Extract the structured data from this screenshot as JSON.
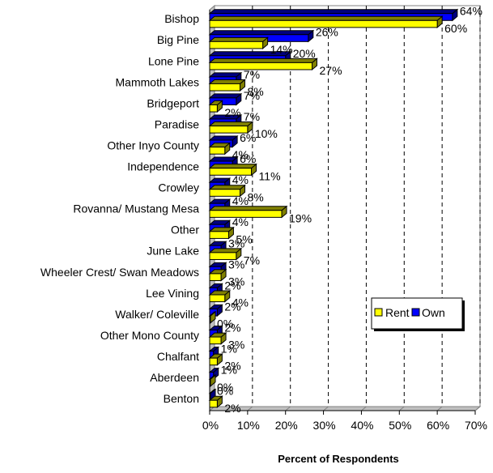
{
  "chart_data": {
    "type": "bar",
    "orientation": "horizontal",
    "categories": [
      "Bishop",
      "Big Pine",
      "Lone Pine",
      "Mammoth Lakes",
      "Bridgeport",
      "Paradise",
      "Other Inyo County",
      "Independence",
      "Crowley",
      "Rovanna/ Mustang Mesa",
      "Other",
      "June Lake",
      "Wheeler Crest/ Swan Meadows",
      "Lee Vining",
      "Walker/ Coleville",
      "Other Mono County",
      "Chalfant",
      "Aberdeen",
      "Benton"
    ],
    "series": [
      {
        "name": "Own",
        "color": "#0000ff",
        "values": [
          64,
          26,
          20,
          7,
          7,
          7,
          6,
          6,
          4,
          4,
          4,
          3,
          3,
          2,
          2,
          2,
          1,
          1,
          0
        ],
        "labels": [
          "64%",
          "26%",
          "20%",
          "7%",
          "7%",
          "7%",
          "6%",
          "6%",
          "4%",
          "4%",
          "4%",
          "3%",
          "3%",
          "2%",
          "2%",
          "2%",
          "1%",
          "1%",
          "0%"
        ]
      },
      {
        "name": "Rent",
        "color": "#ffff00",
        "values": [
          60,
          14,
          27,
          8,
          2,
          10,
          4,
          11,
          8,
          19,
          5,
          7,
          3,
          4,
          0,
          3,
          2,
          0,
          2
        ],
        "labels": [
          "60%",
          "14%",
          "27%",
          "8%",
          "2%",
          "10%",
          "4%",
          "11%",
          "8%",
          "19%",
          "5%",
          "7%",
          "3%",
          "4%",
          "0%",
          "3%",
          "2%",
          "0%",
          "2%"
        ]
      }
    ],
    "xlim": [
      0,
      70
    ],
    "xticks": [
      "0%",
      "10%",
      "20%",
      "30%",
      "40%",
      "50%",
      "60%",
      "70%"
    ],
    "xlabel": "Percent of Respondents",
    "ylabel": "",
    "grid": "vertical dashed",
    "legend": {
      "position": "right",
      "entries": [
        "Rent",
        "Own"
      ]
    },
    "style": "3d"
  }
}
